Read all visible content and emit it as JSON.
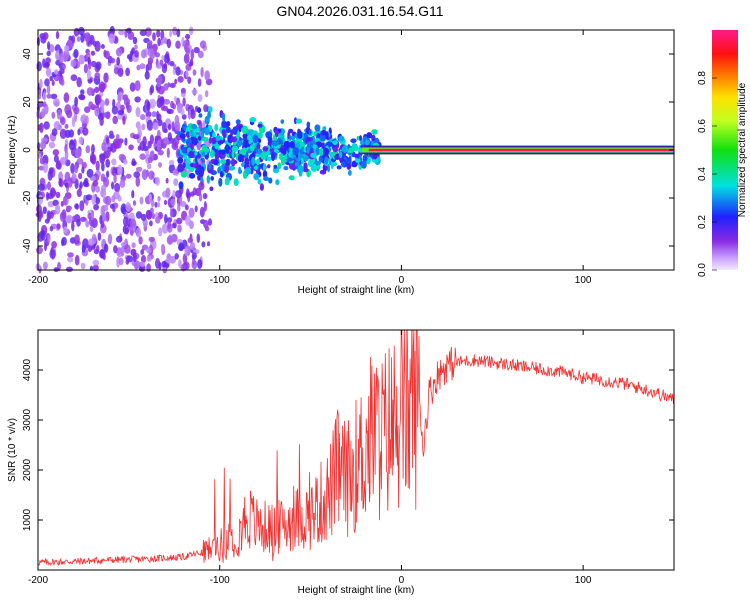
{
  "figure": {
    "title": "GN04.2026.031.16.54.G11"
  },
  "chart_data": [
    {
      "type": "heatmap",
      "name": "spectrogram",
      "xlabel": "Height of straight line (km)",
      "ylabel": "Frequency (Hz)",
      "xlim": [
        -200,
        150
      ],
      "ylim": [
        -50,
        50
      ],
      "x_ticks": [
        -200,
        -100,
        0,
        100
      ],
      "y_ticks": [
        -40,
        -20,
        0,
        20,
        40
      ],
      "colorbar": {
        "label": "Normalized spectral amplitude",
        "range": [
          0,
          1
        ],
        "ticks": [
          0.0,
          0.2,
          0.4,
          0.6,
          0.8
        ]
      },
      "regions": [
        {
          "x_range": [
            -200,
            -120
          ],
          "freq_spread": 50,
          "amplitude": 0.12,
          "note": "diffuse noise"
        },
        {
          "x_range": [
            -120,
            -20
          ],
          "freq_spread": 12,
          "amplitude": 0.3,
          "note": "signal with scatter"
        },
        {
          "x_range": [
            -20,
            150
          ],
          "freq_spread": 1,
          "amplitude": 1.0,
          "note": "strong line near 0 Hz"
        }
      ]
    },
    {
      "type": "line",
      "name": "snr",
      "xlabel": "Height of straight line (km)",
      "ylabel": "SNR (10 * v/v)",
      "xlim": [
        -200,
        150
      ],
      "ylim": [
        0,
        4800
      ],
      "x_ticks": [
        -200,
        -100,
        0,
        100
      ],
      "y_ticks": [
        1000,
        2000,
        3000,
        4000
      ],
      "color": "#f03232",
      "series": [
        {
          "name": "SNR",
          "x": [
            -200,
            -180,
            -160,
            -140,
            -120,
            -110,
            -100,
            -90,
            -85,
            -80,
            -70,
            -60,
            -50,
            -40,
            -35,
            -30,
            -25,
            -20,
            -15,
            -12,
            -10,
            -5,
            0,
            5,
            10,
            12,
            15,
            20,
            25,
            30,
            40,
            50,
            60,
            70,
            80,
            90,
            100,
            110,
            120,
            130,
            140,
            150
          ],
          "values": [
            150,
            170,
            200,
            220,
            260,
            350,
            500,
            700,
            1100,
            900,
            800,
            1000,
            1100,
            1500,
            2000,
            1800,
            2100,
            2400,
            2800,
            2600,
            2700,
            2900,
            3100,
            3300,
            3500,
            2400,
            3500,
            3900,
            4100,
            4150,
            4200,
            4150,
            4100,
            4050,
            4000,
            3950,
            3850,
            3800,
            3750,
            3650,
            3550,
            3400
          ]
        }
      ]
    }
  ]
}
